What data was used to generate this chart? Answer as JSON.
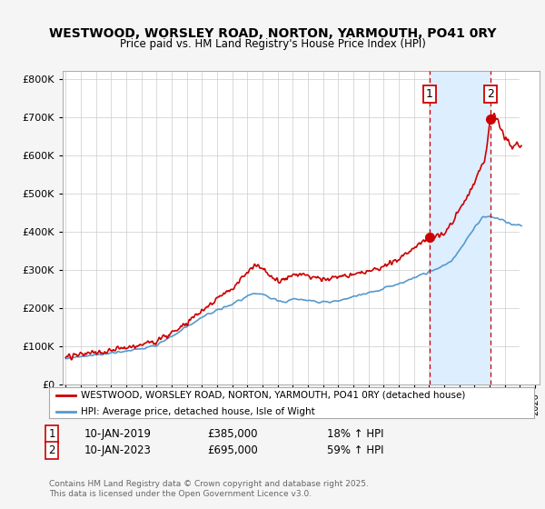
{
  "title1": "WESTWOOD, WORSLEY ROAD, NORTON, YARMOUTH, PO41 0RY",
  "title2": "Price paid vs. HM Land Registry's House Price Index (HPI)",
  "legend_label1": "WESTWOOD, WORSLEY ROAD, NORTON, YARMOUTH, PO41 0RY (detached house)",
  "legend_label2": "HPI: Average price, detached house, Isle of Wight",
  "marker1_date": "10-JAN-2019",
  "marker1_price": "£385,000",
  "marker1_hpi": "18% ↑ HPI",
  "marker2_date": "10-JAN-2023",
  "marker2_price": "£695,000",
  "marker2_hpi": "59% ↑ HPI",
  "footnote": "Contains HM Land Registry data © Crown copyright and database right 2025.\nThis data is licensed under the Open Government Licence v3.0.",
  "line1_color": "#cc0000",
  "line2_color": "#5599cc",
  "background_color": "#f5f5f5",
  "plot_bg_color": "#ffffff",
  "grid_color": "#cccccc",
  "shade_color": "#ddeeff",
  "hatch_color": "#cccccc",
  "vline_color": "#cc0000",
  "marker1_x": 2019.04,
  "marker1_y": 385000,
  "marker2_x": 2023.04,
  "marker2_y": 695000,
  "future_x": 2025.0,
  "xlim_left": 1994.8,
  "xlim_right": 2026.3,
  "ylim": [
    0,
    820000
  ],
  "yticks": [
    0,
    100000,
    200000,
    300000,
    400000,
    500000,
    600000,
    700000,
    800000
  ]
}
